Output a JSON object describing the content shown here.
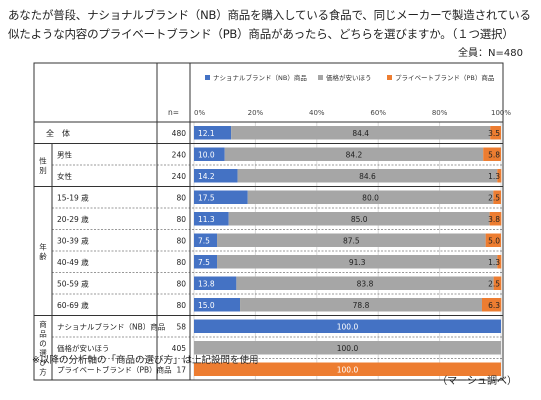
{
  "question": {
    "line1": "あなたが普段、ナショナルブランド（NB）商品を購入している食品で、同じメーカーで製造されている",
    "line2": "似たような内容のプライベートブランド（PB）商品があったら、どちらを選びますか。（１つ選択）"
  },
  "total_label": "全員：N=480",
  "n_header": "n=",
  "footnote": "※以降の分析軸の「商品の選び方」は上記設問を使用",
  "source": "（マーシュ調べ）",
  "colors": {
    "nb": "#4472c4",
    "cheap": "#a6a6a6",
    "pb": "#ed7d31",
    "text_on_bar": "#ffffff",
    "text_on_gray": "#222222"
  },
  "chart_data": {
    "type": "bar",
    "stacked": true,
    "orientation": "horizontal",
    "xlim": [
      0,
      100
    ],
    "xticks": [
      "0%",
      "20%",
      "40%",
      "60%",
      "80%",
      "100%"
    ],
    "legend_position": "top",
    "series": [
      {
        "name": "ナショナルブランド（NB）商品"
      },
      {
        "name": "価格が安いほう"
      },
      {
        "name": "プライベートブランド（PB）商品"
      }
    ],
    "groups": [
      {
        "label": "全　体",
        "start": 0,
        "end": 0
      },
      {
        "label": "性別",
        "start": 1,
        "end": 2
      },
      {
        "label": "年齢",
        "start": 3,
        "end": 8
      },
      {
        "label": "商品の選び方",
        "start": 9,
        "end": 11
      }
    ],
    "rows": [
      {
        "label": "",
        "n": "480",
        "values": [
          12.1,
          84.4,
          3.5
        ]
      },
      {
        "label": "男性",
        "n": "240",
        "values": [
          10.0,
          84.2,
          5.8
        ]
      },
      {
        "label": "女性",
        "n": "240",
        "values": [
          14.2,
          84.6,
          1.3
        ]
      },
      {
        "label": "15-19 歳",
        "n": "80",
        "values": [
          17.5,
          80.0,
          2.5
        ]
      },
      {
        "label": "20-29 歳",
        "n": "80",
        "values": [
          11.3,
          85.0,
          3.8
        ]
      },
      {
        "label": "30-39 歳",
        "n": "80",
        "values": [
          7.5,
          87.5,
          5.0
        ]
      },
      {
        "label": "40-49 歳",
        "n": "80",
        "values": [
          7.5,
          91.3,
          1.3
        ]
      },
      {
        "label": "50-59 歳",
        "n": "80",
        "values": [
          13.8,
          83.8,
          2.5
        ]
      },
      {
        "label": "60-69 歳",
        "n": "80",
        "values": [
          15.0,
          78.8,
          6.3
        ]
      },
      {
        "label": "ナショナルブランド（NB）商品",
        "n": "58",
        "values": [
          100.0,
          0,
          0
        ]
      },
      {
        "label": "価格が安いほう",
        "n": "405",
        "values": [
          0,
          100.0,
          0
        ]
      },
      {
        "label": "プライベートブランド（PB）商品",
        "n": "17",
        "values": [
          0,
          0,
          100.0
        ]
      }
    ]
  }
}
